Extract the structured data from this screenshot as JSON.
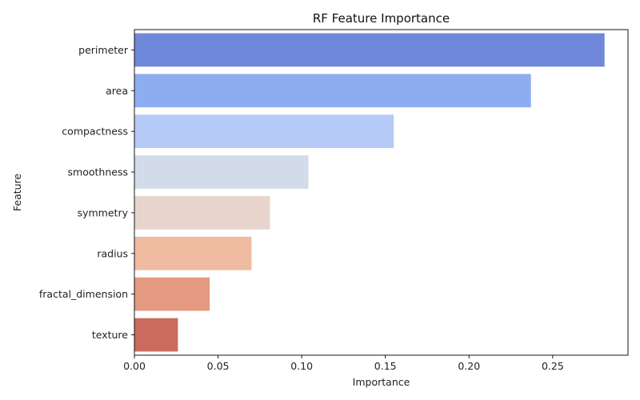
{
  "chart_data": {
    "type": "bar",
    "orientation": "horizontal",
    "title": "RF Feature Importance",
    "xlabel": "Importance",
    "ylabel": "Feature",
    "categories": [
      "perimeter",
      "area",
      "compactness",
      "smoothness",
      "symmetry",
      "radius",
      "fractal_dimension",
      "texture"
    ],
    "values": [
      0.281,
      0.237,
      0.155,
      0.104,
      0.081,
      0.07,
      0.045,
      0.026
    ],
    "colors": [
      "#6f88da",
      "#8eadf0",
      "#b5caf6",
      "#d2dbea",
      "#e7d5cd",
      "#efbba1",
      "#e49980",
      "#cb6a5e"
    ],
    "xlim": [
      0,
      0.295
    ],
    "xticks": [
      0.0,
      0.05,
      0.1,
      0.15,
      0.2,
      0.25
    ],
    "xtick_labels": [
      "0.00",
      "0.05",
      "0.10",
      "0.15",
      "0.20",
      "0.25"
    ],
    "grid": false,
    "legend": false
  }
}
